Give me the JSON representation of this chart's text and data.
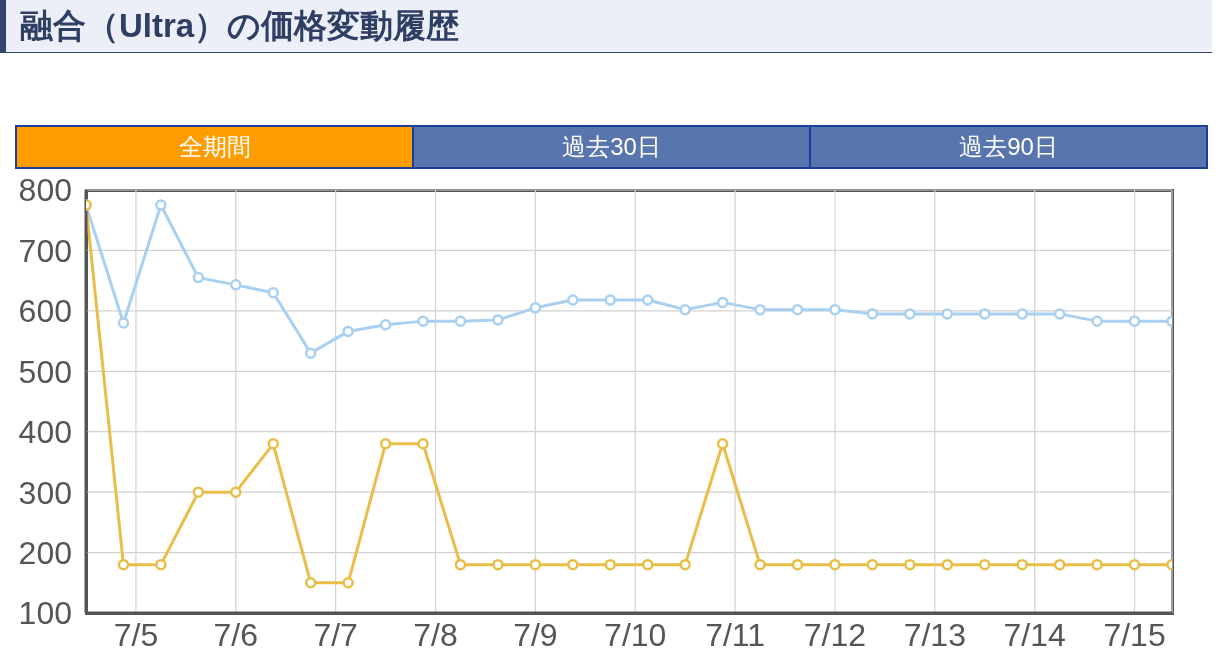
{
  "chart_data": {
    "type": "line",
    "title": "融合（Ultra）の価格変動履歴",
    "annotations": [
      "全期間",
      "過去30日",
      "過去90日"
    ],
    "x": [
      "--07-04T12:00",
      "--07-04T21:00",
      "--07-05T06:00",
      "--07-05T15:00",
      "--07-06T00:00",
      "--07-06T09:00",
      "--07-06T18:00",
      "--07-07T03:00",
      "--07-07T12:00",
      "--07-07T21:00",
      "--07-08T06:00",
      "--07-08T15:00",
      "--07-09T00:00",
      "--07-09T09:00",
      "--07-09T18:00",
      "--07-10T03:00",
      "--07-10T12:00",
      "--07-10T21:00",
      "--07-11T06:00",
      "--07-11T15:00",
      "--07-12T00:00",
      "--07-12T09:00",
      "--07-12T18:00",
      "--07-13T03:00",
      "--07-13T12:00",
      "--07-13T21:00",
      "--07-14T06:00",
      "--07-14T15:00",
      "--07-15T00:00",
      "--07-15T09:00"
    ],
    "series": [
      {
        "color": "#a9d0f0",
        "values": [
          775,
          580,
          775,
          655,
          643,
          630,
          530,
          566,
          577,
          583,
          583,
          585,
          605,
          618,
          618,
          618,
          602,
          614,
          602,
          602,
          602,
          595,
          595,
          595,
          595,
          595,
          595,
          583,
          583,
          583
        ]
      },
      {
        "color": "#e9be48",
        "values": [
          775,
          180,
          180,
          300,
          300,
          380,
          150,
          150,
          380,
          380,
          180,
          180,
          180,
          180,
          180,
          180,
          180,
          380,
          180,
          180,
          180,
          180,
          180,
          180,
          180,
          180,
          180,
          180,
          180,
          180
        ]
      }
    ],
    "xlim": [
      "--07-04T12:00",
      "--07-15T09:00"
    ],
    "xticks": [
      {
        "value": "--07-05",
        "label": "7/5"
      },
      {
        "value": "--07-06",
        "label": "7/6"
      },
      {
        "value": "--07-07",
        "label": "7/7"
      },
      {
        "value": "--07-08",
        "label": "7/8"
      },
      {
        "value": "--07-09",
        "label": "7/9"
      },
      {
        "value": "--07-10",
        "label": "7/10"
      },
      {
        "value": "--07-11",
        "label": "7/11"
      },
      {
        "value": "--07-12",
        "label": "7/12"
      },
      {
        "value": "--07-13",
        "label": "7/13"
      },
      {
        "value": "--07-14",
        "label": "7/14"
      },
      {
        "value": "--07-15",
        "label": "7/15"
      }
    ],
    "ylim": [
      100,
      800
    ],
    "yticks": [
      100,
      200,
      300,
      400,
      500,
      600,
      700,
      800
    ],
    "grid": true,
    "marker": "circle",
    "line_style": "solid"
  }
}
